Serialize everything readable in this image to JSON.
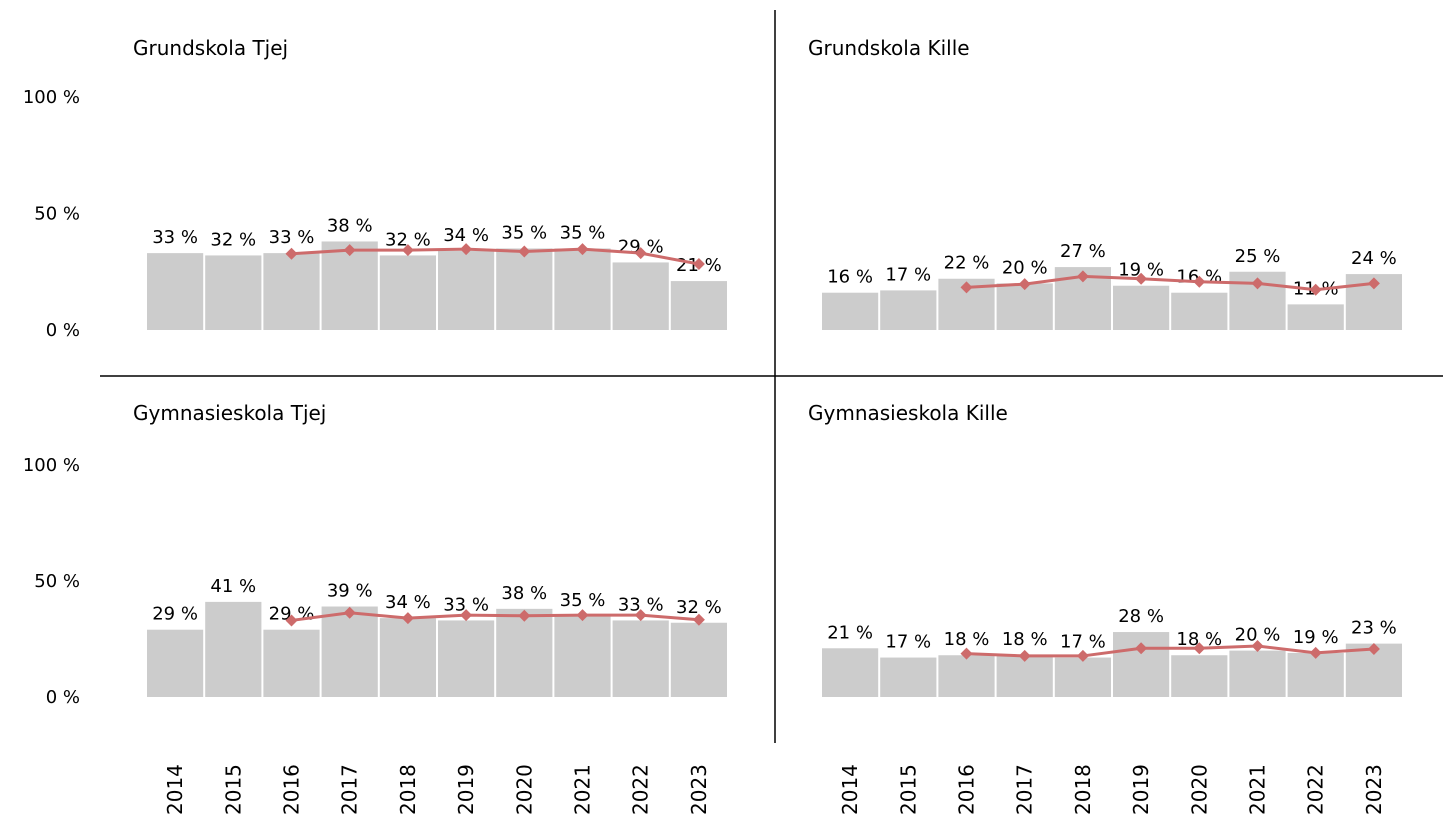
{
  "chart_data": [
    {
      "type": "bar",
      "title": "Grundskola Tjej",
      "values": [
        33,
        32,
        33,
        38,
        32,
        34,
        35,
        35,
        29,
        21
      ],
      "value_labels": [
        "33 %",
        "32 %",
        "33 %",
        "38 %",
        "32 %",
        "34 %",
        "35 %",
        "35 %",
        "29 %",
        "21 %"
      ],
      "color": "#cccccc",
      "trend": {
        "values": [
          null,
          null,
          32.7,
          34.3,
          34.3,
          34.7,
          33.7,
          34.7,
          33,
          28.3
        ],
        "color": "#cd6b6b"
      },
      "ylim": [
        0,
        100
      ],
      "yticks": [
        {
          "value": 0,
          "label": "0 %"
        },
        {
          "value": 50,
          "label": "50 %"
        },
        {
          "value": 100,
          "label": "100 %"
        }
      ]
    },
    {
      "type": "bar",
      "title": "Grundskola Kille",
      "values": [
        16,
        17,
        22,
        20,
        27,
        19,
        16,
        25,
        11,
        24
      ],
      "value_labels": [
        "16 %",
        "17 %",
        "22 %",
        "20 %",
        "27 %",
        "19 %",
        "16 %",
        "25 %",
        "11 %",
        "24 %"
      ],
      "color": "#cccccc",
      "trend": {
        "values": [
          null,
          null,
          18.3,
          19.7,
          23,
          22,
          20.7,
          20,
          17.3,
          20
        ],
        "color": "#cd6b6b"
      },
      "ylim": [
        0,
        100
      ]
    },
    {
      "type": "bar",
      "title": "Gymnasieskola Tjej",
      "categories": [
        "2014",
        "2015",
        "2016",
        "2017",
        "2018",
        "2019",
        "2020",
        "2021",
        "2022",
        "2023"
      ],
      "values": [
        29,
        41,
        29,
        39,
        34,
        33,
        38,
        35,
        33,
        32
      ],
      "value_labels": [
        "29 %",
        "41 %",
        "29 %",
        "39 %",
        "34 %",
        "33 %",
        "38 %",
        "35 %",
        "33 %",
        "32 %"
      ],
      "color": "#cccccc",
      "trend": {
        "values": [
          null,
          null,
          33,
          36.3,
          34,
          35.3,
          35,
          35.3,
          35.3,
          33.3
        ],
        "color": "#cd6b6b"
      },
      "ylim": [
        0,
        100
      ],
      "yticks": [
        {
          "value": 0,
          "label": "0 %"
        },
        {
          "value": 50,
          "label": "50 %"
        },
        {
          "value": 100,
          "label": "100 %"
        }
      ]
    },
    {
      "type": "bar",
      "title": "Gymnasieskola Kille",
      "categories": [
        "2014",
        "2015",
        "2016",
        "2017",
        "2018",
        "2019",
        "2020",
        "2021",
        "2022",
        "2023"
      ],
      "values": [
        21,
        17,
        18,
        18,
        17,
        28,
        18,
        20,
        19,
        23
      ],
      "value_labels": [
        "21 %",
        "17 %",
        "18 %",
        "18 %",
        "17 %",
        "28 %",
        "18 %",
        "20 %",
        "19 %",
        "23 %"
      ],
      "color": "#cccccc",
      "trend": {
        "values": [
          null,
          null,
          18.7,
          17.7,
          17.7,
          21,
          21,
          22,
          19,
          20.7
        ],
        "color": "#cd6b6b"
      },
      "ylim": [
        0,
        100
      ]
    }
  ]
}
